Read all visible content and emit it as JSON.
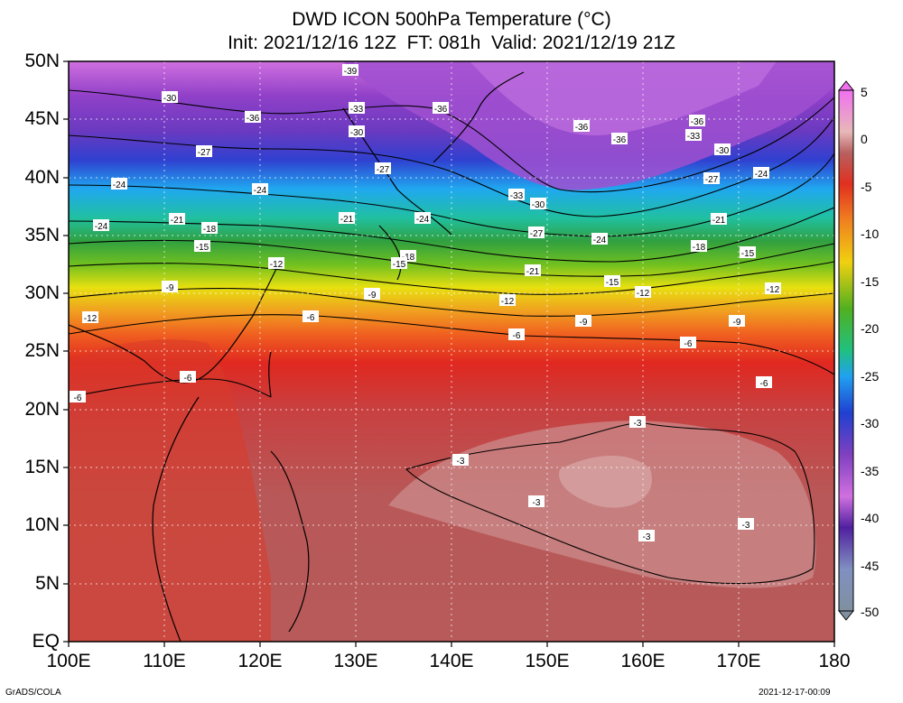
{
  "title": {
    "line1": "DWD ICON 500hPa Temperature (°C)",
    "line2": "Init: 2021/12/16 12Z  FT: 081h  Valid: 2021/12/19 21Z"
  },
  "axes": {
    "lat_labels": [
      "50N",
      "45N",
      "40N",
      "35N",
      "30N",
      "25N",
      "20N",
      "15N",
      "10N",
      "5N",
      "EQ"
    ],
    "lon_labels": [
      "100E",
      "110E",
      "120E",
      "130E",
      "140E",
      "150E",
      "160E",
      "170E",
      "180"
    ]
  },
  "colorbar": {
    "labels": [
      "5",
      "0",
      "-5",
      "-10",
      "-15",
      "-20",
      "-25",
      "-30",
      "-35",
      "-40",
      "-45",
      "-50"
    ],
    "colors": [
      "#f070f0",
      "#e8b8b8",
      "#b86060",
      "#e03020",
      "#f08020",
      "#f0d010",
      "#50b020",
      "#20c080",
      "#20a0f0",
      "#2040d0",
      "#8040c0",
      "#d070e0",
      "#5020a0",
      "#8090c0",
      "#8090a0"
    ]
  },
  "contour_labels": [
    "-39",
    "-36",
    "-33",
    "-30",
    "-27",
    "-24",
    "-21",
    "-18",
    "-15",
    "-12",
    "-9",
    "-6",
    "-3"
  ],
  "footer": {
    "left": "GrADS/COLA",
    "right": "2021-12-17-00:09"
  }
}
